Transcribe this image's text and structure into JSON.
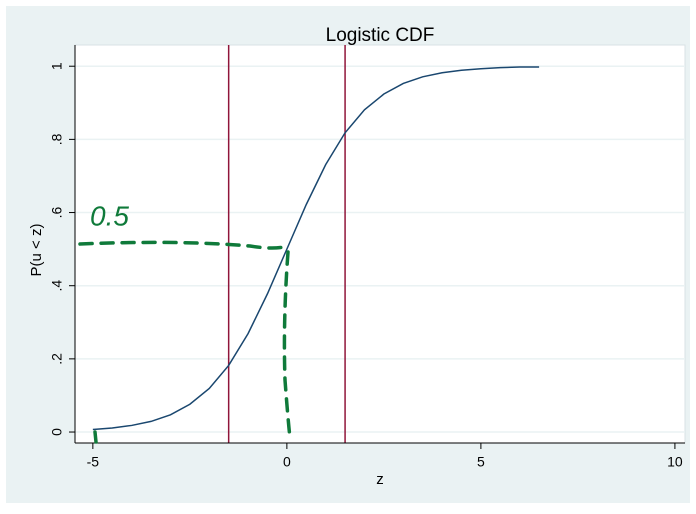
{
  "chart_data": {
    "type": "line",
    "title": "Logistic CDF",
    "xlabel": "z",
    "ylabel": "P(u < z)",
    "x": [
      -5,
      -4.5,
      -4,
      -3.5,
      -3,
      -2.5,
      -2,
      -1.5,
      -1,
      -0.5,
      0,
      0.5,
      1,
      1.5,
      2,
      2.5,
      3,
      3.5,
      4,
      4.5,
      5,
      5.5,
      6,
      6.5
    ],
    "series": [
      {
        "color": "#1a476f",
        "values": [
          0.007,
          0.011,
          0.018,
          0.029,
          0.047,
          0.076,
          0.119,
          0.182,
          0.269,
          0.378,
          0.5,
          0.622,
          0.731,
          0.818,
          0.881,
          0.924,
          0.953,
          0.971,
          0.982,
          0.989,
          0.993,
          0.996,
          0.998,
          0.998
        ]
      }
    ],
    "vlines": [
      -1.5,
      1.5
    ],
    "vline_color": "#90153a",
    "xlim": [
      -5.46,
      10.26
    ],
    "xticks": [
      -5,
      0,
      5,
      10
    ],
    "ylim": [
      -0.03,
      1.058
    ],
    "yticks": [
      0,
      {
        "value": 0.2,
        "label": ".2"
      },
      {
        "value": 0.4,
        "label": ".4"
      },
      {
        "value": 0.6,
        "label": ".6"
      },
      {
        "value": 0.8,
        "label": ".8"
      },
      1
    ],
    "grid": true,
    "annotation": "0.5"
  }
}
